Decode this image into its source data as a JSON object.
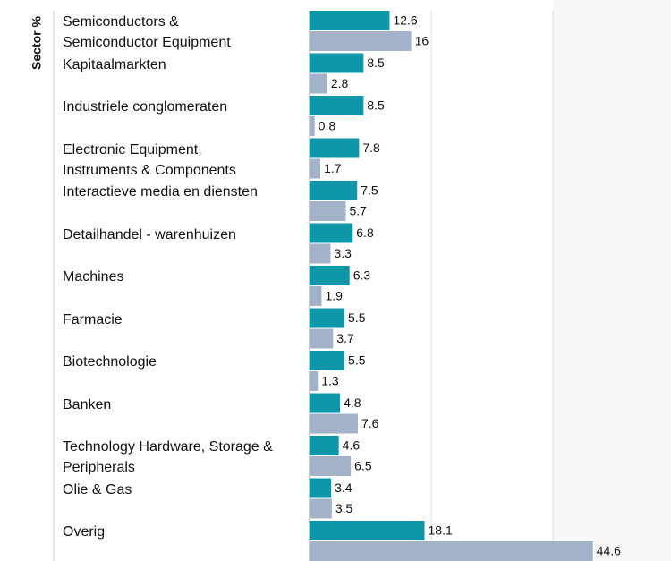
{
  "chart_data": {
    "type": "hbar",
    "ylabel": "Sector %",
    "categories": [
      "Semiconductors &\nSemiconductor Equipment",
      "Kapitaalmarkten",
      "Industriele conglomeraten",
      "Electronic Equipment,\nInstruments & Components",
      "Interactieve media en diensten",
      "Detailhandel - warenhuizen",
      "Machines",
      "Farmacie",
      "Biotechnologie",
      "Banken",
      "Technology Hardware, Storage &\nPeripherals",
      "Olie & Gas",
      "Overig"
    ],
    "series": [
      {
        "color": "#0e97a9",
        "values": [
          12.6,
          8.5,
          8.5,
          7.8,
          7.5,
          6.8,
          6.3,
          5.5,
          5.5,
          4.8,
          4.6,
          3.4,
          18.1
        ]
      },
      {
        "color": "#a3b2c8",
        "values": [
          16.0,
          2.8,
          0.8,
          1.7,
          5.7,
          3.3,
          1.9,
          3.7,
          1.3,
          7.6,
          6.5,
          3.5,
          44.6
        ]
      }
    ],
    "xlim": [
      0,
      50
    ]
  }
}
